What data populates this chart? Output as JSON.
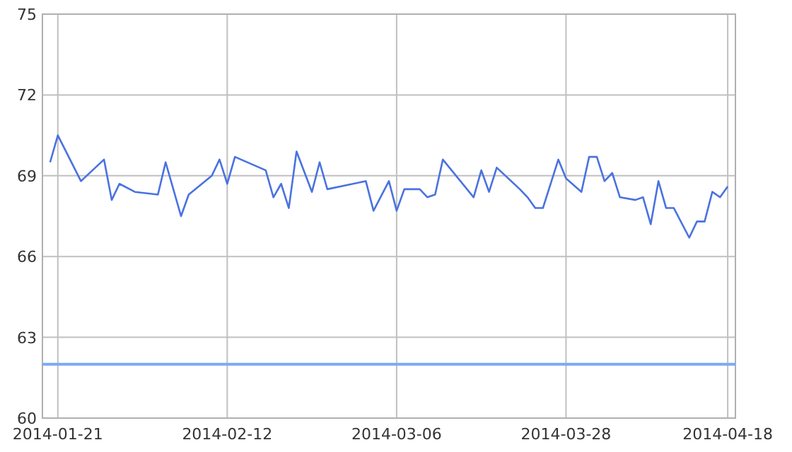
{
  "chart_data": {
    "type": "line",
    "x": [
      "2014-01-20",
      "2014-01-21",
      "2014-01-24",
      "2014-01-27",
      "2014-01-28",
      "2014-01-29",
      "2014-01-31",
      "2014-02-03",
      "2014-02-04",
      "2014-02-06",
      "2014-02-07",
      "2014-02-10",
      "2014-02-11",
      "2014-02-12",
      "2014-02-13",
      "2014-02-17",
      "2014-02-18",
      "2014-02-19",
      "2014-02-20",
      "2014-02-21",
      "2014-02-23",
      "2014-02-24",
      "2014-02-25",
      "2014-03-02",
      "2014-03-03",
      "2014-03-05",
      "2014-03-06",
      "2014-03-07",
      "2014-03-09",
      "2014-03-10",
      "2014-03-11",
      "2014-03-12",
      "2014-03-16",
      "2014-03-17",
      "2014-03-18",
      "2014-03-19",
      "2014-03-22",
      "2014-03-23",
      "2014-03-24",
      "2014-03-25",
      "2014-03-27",
      "2014-03-28",
      "2014-03-30",
      "2014-03-31",
      "2014-04-01",
      "2014-04-02",
      "2014-04-03",
      "2014-04-04",
      "2014-04-06",
      "2014-04-07",
      "2014-04-08",
      "2014-04-09",
      "2014-04-10",
      "2014-04-11",
      "2014-04-13",
      "2014-04-14",
      "2014-04-15",
      "2014-04-16",
      "2014-04-17",
      "2014-04-18"
    ],
    "series": [
      {
        "color": "#4a72e0",
        "values": [
          69.5,
          70.5,
          68.8,
          69.6,
          68.1,
          68.7,
          68.4,
          68.3,
          69.5,
          67.5,
          68.3,
          69.0,
          69.6,
          68.7,
          69.7,
          69.2,
          68.2,
          68.7,
          67.8,
          69.9,
          68.4,
          69.5,
          68.5,
          68.8,
          67.7,
          68.8,
          67.7,
          68.5,
          68.5,
          68.2,
          68.3,
          69.6,
          68.2,
          69.2,
          68.4,
          69.3,
          68.5,
          68.2,
          67.8,
          67.8,
          69.6,
          68.9,
          68.4,
          69.7,
          69.7,
          68.8,
          69.1,
          68.2,
          68.1,
          68.2,
          67.2,
          68.8,
          67.8,
          67.8,
          66.7,
          67.3,
          67.3,
          68.4,
          68.2,
          68.6
        ]
      }
    ],
    "xlim": [
      "2014-01-19",
      "2014-04-19"
    ],
    "xticks": [
      {
        "value": "2014-01-21",
        "label": "2014-01-21"
      },
      {
        "value": "2014-02-12",
        "label": "2014-02-12"
      },
      {
        "value": "2014-03-06",
        "label": "2014-03-06"
      },
      {
        "value": "2014-03-28",
        "label": "2014-03-28"
      },
      {
        "value": "2014-04-18",
        "label": "2014-04-18"
      }
    ],
    "ylim": [
      60,
      75
    ],
    "yticks": [
      60,
      63,
      66,
      69,
      72,
      75
    ],
    "ref_lines": [
      {
        "axis": "y",
        "value": 62,
        "color": "#7aaaf5"
      }
    ],
    "grid": true
  }
}
